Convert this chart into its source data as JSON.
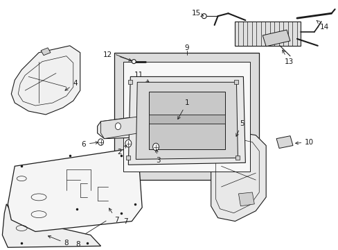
{
  "bg_color": "#ffffff",
  "line_color": "#1a1a1a",
  "gray_fill": "#e8e8e8",
  "light_gray": "#f0f0f0",
  "shade_gray": "#d0d0d0",
  "med_gray": "#c8c8c8"
}
